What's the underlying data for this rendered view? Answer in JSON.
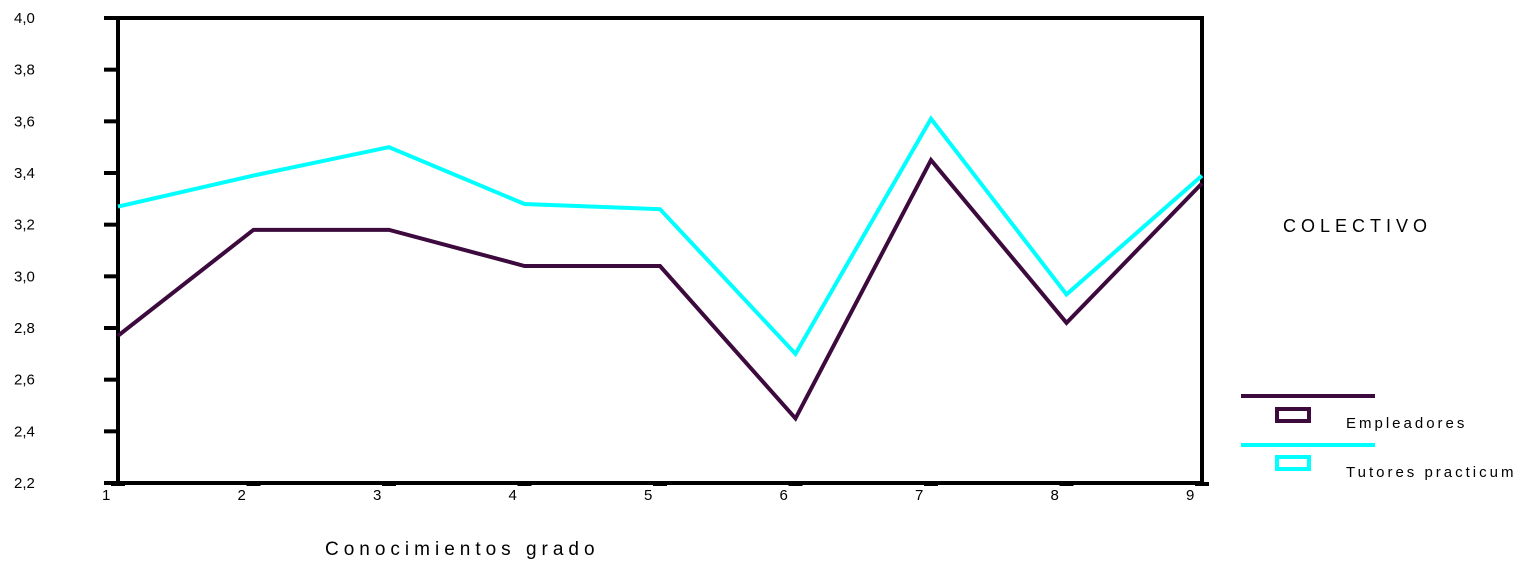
{
  "chart_data": {
    "type": "line",
    "xlabel": "Conocimientos grado",
    "ylabel": "",
    "x": [
      1,
      2,
      3,
      4,
      5,
      6,
      7,
      8,
      9
    ],
    "x_tick_labels": [
      "1",
      "2",
      "3",
      "4",
      "5",
      "6",
      "7",
      "8",
      "9"
    ],
    "ylim": [
      2.2,
      4.0
    ],
    "y_ticks": [
      2.2,
      2.4,
      2.6,
      2.8,
      3.0,
      3.2,
      3.4,
      3.6,
      3.8,
      4.0
    ],
    "y_tick_labels": [
      "2,2",
      "2,4",
      "2,6",
      "2,8",
      "3,0",
      "3,2",
      "3,4",
      "3,6",
      "3,8",
      "4,0"
    ],
    "grid": false,
    "legend": {
      "title": "COLECTIVO",
      "placement": "right"
    },
    "series": [
      {
        "name": "Empleadores",
        "color": "#3d0a3d",
        "values": [
          2.77,
          3.18,
          3.18,
          3.04,
          3.04,
          2.45,
          3.45,
          2.82,
          3.36
        ]
      },
      {
        "name": "Tutores practicum",
        "color": "#00ffff",
        "values": [
          3.27,
          3.39,
          3.5,
          3.28,
          3.26,
          2.7,
          3.61,
          2.93,
          3.39
        ]
      }
    ]
  }
}
